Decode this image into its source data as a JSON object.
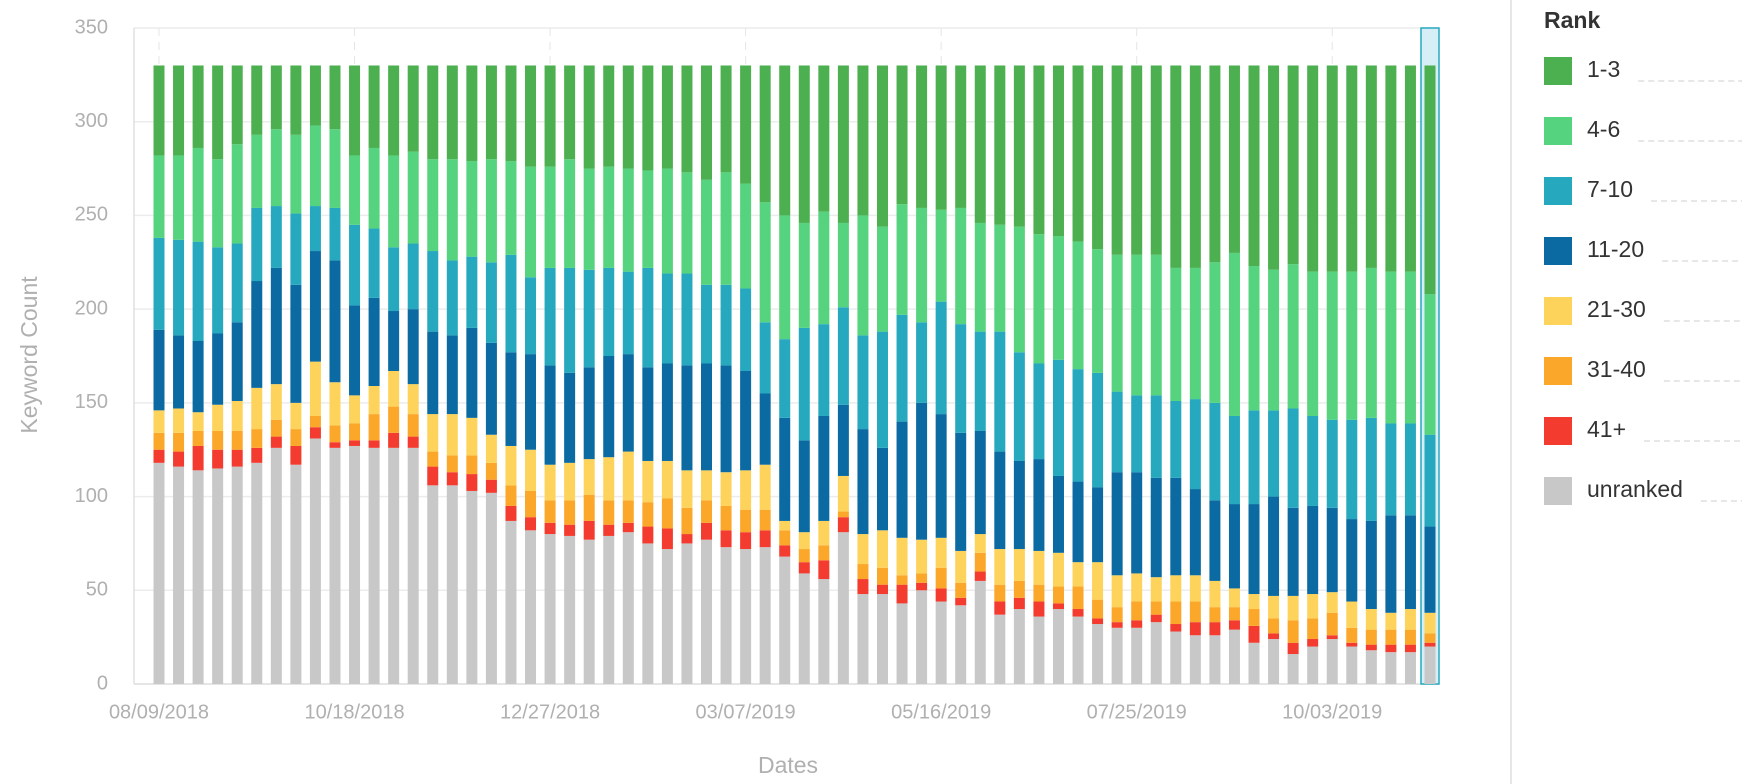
{
  "chart_data": {
    "type": "stacked_bar",
    "xlabel": "Dates",
    "ylabel": "Keyword Count",
    "legend_title": "Rank",
    "categories": [
      "08/09/2018",
      null,
      null,
      null,
      null,
      null,
      null,
      null,
      null,
      null,
      "10/18/2018",
      null,
      null,
      null,
      null,
      null,
      null,
      null,
      null,
      null,
      "12/27/2018",
      null,
      null,
      null,
      null,
      null,
      null,
      null,
      null,
      null,
      "03/07/2019",
      null,
      null,
      null,
      null,
      null,
      null,
      null,
      null,
      null,
      "05/16/2019",
      null,
      null,
      null,
      null,
      null,
      null,
      null,
      null,
      null,
      "07/25/2019",
      null,
      null,
      null,
      null,
      null,
      null,
      null,
      null,
      null,
      "10/03/2019",
      null,
      null,
      null,
      null,
      null
    ],
    "ylim": [
      0,
      350
    ],
    "yticks": [
      0,
      50,
      100,
      150,
      200,
      250,
      300,
      350
    ],
    "grid": true,
    "legend": "right",
    "series": [
      {
        "name": "1-3",
        "color": "#4caf50",
        "values": [
          48,
          48,
          44,
          50,
          42,
          37,
          34,
          37,
          32,
          34,
          48,
          44,
          48,
          46,
          50,
          50,
          51,
          50,
          51,
          54,
          54,
          50,
          55,
          54,
          55,
          56,
          55,
          57,
          61,
          57,
          63,
          73,
          80,
          84,
          78,
          84,
          80,
          86,
          74,
          76,
          77,
          76,
          84,
          85,
          86,
          90,
          91,
          94,
          98,
          101,
          101,
          101,
          108,
          108,
          105,
          100,
          107,
          109,
          106,
          110,
          110,
          110,
          108,
          110,
          110,
          122
        ]
      },
      {
        "name": "4-6",
        "color": "#55d37e",
        "values": [
          44,
          45,
          50,
          47,
          53,
          39,
          41,
          42,
          43,
          42,
          37,
          43,
          49,
          49,
          49,
          54,
          51,
          55,
          50,
          59,
          54,
          58,
          54,
          54,
          55,
          52,
          56,
          54,
          56,
          60,
          56,
          64,
          66,
          56,
          60,
          45,
          64,
          56,
          59,
          61,
          49,
          62,
          58,
          57,
          67,
          69,
          66,
          68,
          66,
          73,
          75,
          75,
          71,
          70,
          75,
          87,
          77,
          75,
          77,
          77,
          79,
          79,
          80,
          81,
          81,
          75
        ]
      },
      {
        "name": "7-10",
        "color": "#26a9be",
        "values": [
          49,
          51,
          53,
          46,
          42,
          39,
          33,
          38,
          24,
          28,
          43,
          37,
          34,
          35,
          43,
          40,
          38,
          43,
          52,
          41,
          52,
          56,
          52,
          47,
          44,
          53,
          48,
          49,
          42,
          43,
          44,
          38,
          42,
          60,
          49,
          52,
          50,
          62,
          57,
          43,
          60,
          58,
          53,
          64,
          58,
          51,
          62,
          60,
          61,
          43,
          41,
          44,
          41,
          48,
          52,
          47,
          50,
          46,
          53,
          48,
          47,
          53,
          55,
          49,
          49,
          49
        ]
      },
      {
        "name": "11-20",
        "color": "#0a6aa1",
        "values": [
          43,
          39,
          38,
          38,
          42,
          57,
          62,
          63,
          59,
          65,
          48,
          47,
          32,
          40,
          44,
          42,
          48,
          49,
          50,
          51,
          53,
          48,
          49,
          54,
          52,
          50,
          52,
          56,
          57,
          57,
          53,
          38,
          55,
          49,
          56,
          38,
          56,
          44,
          62,
          73,
          66,
          63,
          55,
          52,
          47,
          49,
          41,
          43,
          40,
          55,
          54,
          53,
          52,
          46,
          43,
          45,
          48,
          53,
          47,
          47,
          45,
          44,
          47,
          52,
          50,
          46
        ]
      },
      {
        "name": "21-30",
        "color": "#fdd35b",
        "values": [
          12,
          13,
          10,
          14,
          16,
          22,
          19,
          14,
          29,
          23,
          15,
          15,
          19,
          16,
          20,
          22,
          20,
          15,
          21,
          22,
          19,
          20,
          19,
          23,
          26,
          22,
          20,
          20,
          16,
          18,
          21,
          24,
          5,
          9,
          13,
          19,
          16,
          20,
          20,
          18,
          16,
          17,
          10,
          19,
          17,
          18,
          18,
          13,
          20,
          17,
          15,
          13,
          14,
          14,
          14,
          10,
          8,
          12,
          13,
          13,
          11,
          14,
          11,
          9,
          11,
          11
        ]
      },
      {
        "name": "31-40",
        "color": "#fba72a",
        "values": [
          9,
          10,
          8,
          10,
          10,
          10,
          9,
          9,
          6,
          9,
          9,
          14,
          14,
          12,
          8,
          9,
          10,
          9,
          11,
          14,
          12,
          13,
          14,
          13,
          12,
          13,
          16,
          14,
          12,
          13,
          12,
          11,
          8,
          7,
          8,
          3,
          8,
          9,
          5,
          5,
          11,
          8,
          10,
          9,
          9,
          9,
          9,
          12,
          10,
          8,
          10,
          7,
          12,
          11,
          8,
          7,
          9,
          8,
          12,
          11,
          12,
          8,
          8,
          8,
          8,
          5
        ]
      },
      {
        "name": "41+",
        "color": "#f33b2f",
        "values": [
          7,
          8,
          13,
          10,
          9,
          8,
          6,
          10,
          6,
          3,
          3,
          4,
          8,
          6,
          10,
          7,
          9,
          7,
          8,
          7,
          6,
          6,
          10,
          6,
          5,
          9,
          11,
          5,
          9,
          9,
          9,
          9,
          6,
          6,
          10,
          8,
          8,
          5,
          10,
          4,
          7,
          4,
          5,
          7,
          6,
          8,
          3,
          4,
          3,
          3,
          4,
          4,
          4,
          7,
          7,
          5,
          9,
          3,
          6,
          4,
          2,
          2,
          3,
          4,
          4,
          2
        ]
      },
      {
        "name": "unranked",
        "color": "#c8c8c8",
        "values": [
          118,
          116,
          114,
          115,
          116,
          118,
          126,
          117,
          131,
          126,
          127,
          126,
          126,
          126,
          106,
          106,
          103,
          102,
          87,
          82,
          80,
          79,
          77,
          79,
          81,
          75,
          72,
          75,
          77,
          73,
          72,
          73,
          68,
          59,
          56,
          81,
          48,
          48,
          43,
          50,
          44,
          42,
          55,
          37,
          40,
          36,
          40,
          36,
          32,
          30,
          30,
          33,
          28,
          26,
          26,
          29,
          22,
          24,
          16,
          20,
          24,
          20,
          18,
          17,
          17,
          20
        ]
      }
    ]
  }
}
